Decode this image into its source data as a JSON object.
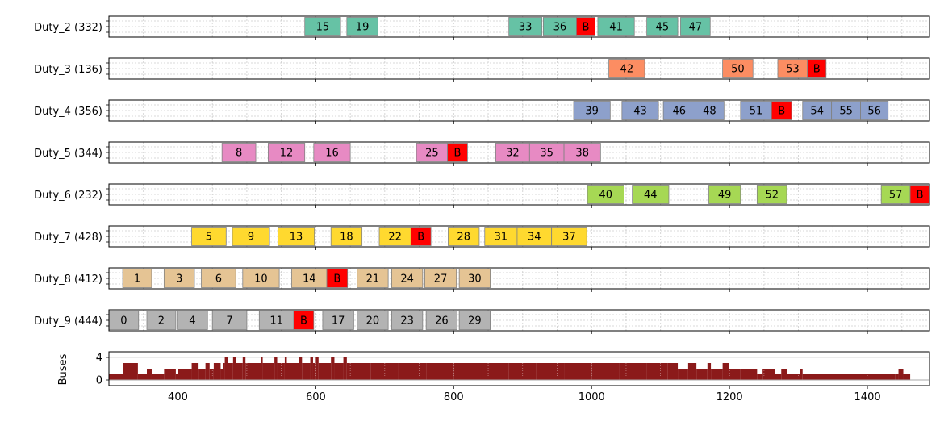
{
  "chart_data": {
    "type": "gantt",
    "x_range": [
      300,
      1490
    ],
    "x_ticks": [
      400,
      600,
      800,
      1000,
      1200,
      1400
    ],
    "grid": true,
    "break_label": "B",
    "colors": {
      "Duty_2": "#66c2a5",
      "Duty_3": "#fc8d62",
      "Duty_4": "#8da0cb",
      "Duty_5": "#e78ac3",
      "Duty_6": "#a6d854",
      "Duty_7": "#ffd92f",
      "Duty_8": "#e5c494",
      "Duty_9": "#b3b3b3",
      "break": "#ff0000",
      "buses": "#8b1a1a"
    },
    "rows": [
      {
        "label": "Duty_2 (332)",
        "key": "Duty_2",
        "tasks": [
          {
            "id": "15",
            "start": 584,
            "end": 636
          },
          {
            "id": "19",
            "start": 645,
            "end": 690
          },
          {
            "id": "33",
            "start": 880,
            "end": 928
          },
          {
            "id": "36",
            "start": 930,
            "end": 978
          },
          {
            "id": "B",
            "start": 978,
            "end": 1005,
            "brk": true
          },
          {
            "id": "41",
            "start": 1009,
            "end": 1062
          },
          {
            "id": "45",
            "start": 1080,
            "end": 1125
          },
          {
            "id": "47",
            "start": 1129,
            "end": 1172
          }
        ]
      },
      {
        "label": "Duty_3 (136)",
        "key": "Duty_3",
        "tasks": [
          {
            "id": "42",
            "start": 1025,
            "end": 1077
          },
          {
            "id": "50",
            "start": 1190,
            "end": 1234
          },
          {
            "id": "53",
            "start": 1270,
            "end": 1313
          },
          {
            "id": "B",
            "start": 1313,
            "end": 1340,
            "brk": true
          }
        ]
      },
      {
        "label": "Duty_4 (356)",
        "key": "Duty_4",
        "tasks": [
          {
            "id": "39",
            "start": 974,
            "end": 1027
          },
          {
            "id": "43",
            "start": 1044,
            "end": 1097
          },
          {
            "id": "46",
            "start": 1104,
            "end": 1150
          },
          {
            "id": "48",
            "start": 1150,
            "end": 1192
          },
          {
            "id": "51",
            "start": 1216,
            "end": 1261
          },
          {
            "id": "B",
            "start": 1261,
            "end": 1290,
            "brk": true
          },
          {
            "id": "54",
            "start": 1306,
            "end": 1348
          },
          {
            "id": "55",
            "start": 1348,
            "end": 1390
          },
          {
            "id": "56",
            "start": 1390,
            "end": 1430
          }
        ]
      },
      {
        "label": "Duty_5 (344)",
        "key": "Duty_5",
        "tasks": [
          {
            "id": "8",
            "start": 464,
            "end": 513
          },
          {
            "id": "12",
            "start": 531,
            "end": 584
          },
          {
            "id": "16",
            "start": 597,
            "end": 650
          },
          {
            "id": "25",
            "start": 746,
            "end": 791
          },
          {
            "id": "B",
            "start": 791,
            "end": 820,
            "brk": true
          },
          {
            "id": "32",
            "start": 861,
            "end": 910
          },
          {
            "id": "35",
            "start": 910,
            "end": 960
          },
          {
            "id": "38",
            "start": 960,
            "end": 1013
          }
        ]
      },
      {
        "label": "Duty_6 (232)",
        "key": "Duty_6",
        "tasks": [
          {
            "id": "40",
            "start": 994,
            "end": 1047
          },
          {
            "id": "44",
            "start": 1059,
            "end": 1112
          },
          {
            "id": "49",
            "start": 1170,
            "end": 1216
          },
          {
            "id": "52",
            "start": 1240,
            "end": 1283
          },
          {
            "id": "57",
            "start": 1420,
            "end": 1462
          },
          {
            "id": "B",
            "start": 1462,
            "end": 1490,
            "brk": true
          }
        ]
      },
      {
        "label": "Duty_7 (428)",
        "key": "Duty_7",
        "tasks": [
          {
            "id": "5",
            "start": 420,
            "end": 470
          },
          {
            "id": "9",
            "start": 479,
            "end": 533
          },
          {
            "id": "13",
            "start": 545,
            "end": 598
          },
          {
            "id": "18",
            "start": 622,
            "end": 667
          },
          {
            "id": "22",
            "start": 692,
            "end": 738
          },
          {
            "id": "B",
            "start": 738,
            "end": 767,
            "brk": true
          },
          {
            "id": "28",
            "start": 792,
            "end": 837
          },
          {
            "id": "31",
            "start": 845,
            "end": 892
          },
          {
            "id": "34",
            "start": 892,
            "end": 942
          },
          {
            "id": "37",
            "start": 942,
            "end": 993
          }
        ]
      },
      {
        "label": "Duty_8 (412)",
        "key": "Duty_8",
        "tasks": [
          {
            "id": "1",
            "start": 320,
            "end": 362
          },
          {
            "id": "3",
            "start": 380,
            "end": 424
          },
          {
            "id": "6",
            "start": 434,
            "end": 484
          },
          {
            "id": "10",
            "start": 494,
            "end": 547
          },
          {
            "id": "14",
            "start": 565,
            "end": 616
          },
          {
            "id": "B",
            "start": 616,
            "end": 646,
            "brk": true
          },
          {
            "id": "21",
            "start": 660,
            "end": 705
          },
          {
            "id": "24",
            "start": 710,
            "end": 755
          },
          {
            "id": "27",
            "start": 758,
            "end": 804
          },
          {
            "id": "30",
            "start": 808,
            "end": 853
          }
        ]
      },
      {
        "label": "Duty_9 (444)",
        "key": "Duty_9",
        "tasks": [
          {
            "id": "0",
            "start": 300,
            "end": 343
          },
          {
            "id": "2",
            "start": 355,
            "end": 397
          },
          {
            "id": "4",
            "start": 399,
            "end": 443
          },
          {
            "id": "7",
            "start": 450,
            "end": 500
          },
          {
            "id": "11",
            "start": 518,
            "end": 568
          },
          {
            "id": "B",
            "start": 568,
            "end": 597,
            "brk": true
          },
          {
            "id": "17",
            "start": 610,
            "end": 655
          },
          {
            "id": "20",
            "start": 660,
            "end": 705
          },
          {
            "id": "23",
            "start": 710,
            "end": 755
          },
          {
            "id": "26",
            "start": 760,
            "end": 805
          },
          {
            "id": "29",
            "start": 808,
            "end": 853
          }
        ]
      }
    ],
    "buses": {
      "ylabel": "Buses",
      "yticks": [
        0,
        4
      ],
      "ylim": [
        -1,
        5
      ],
      "steps": [
        [
          300,
          1
        ],
        [
          320,
          3
        ],
        [
          342,
          1
        ],
        [
          355,
          2
        ],
        [
          362,
          1
        ],
        [
          380,
          2
        ],
        [
          397,
          1
        ],
        [
          400,
          2
        ],
        [
          420,
          3
        ],
        [
          430,
          2
        ],
        [
          440,
          3
        ],
        [
          446,
          2
        ],
        [
          452,
          3
        ],
        [
          462,
          2
        ],
        [
          466,
          3
        ],
        [
          468,
          4
        ],
        [
          472,
          3
        ],
        [
          480,
          4
        ],
        [
          484,
          3
        ],
        [
          494,
          4
        ],
        [
          498,
          3
        ],
        [
          520,
          4
        ],
        [
          523,
          3
        ],
        [
          540,
          4
        ],
        [
          544,
          3
        ],
        [
          555,
          4
        ],
        [
          558,
          3
        ],
        [
          576,
          4
        ],
        [
          580,
          3
        ],
        [
          592,
          4
        ],
        [
          596,
          3
        ],
        [
          600,
          4
        ],
        [
          604,
          3
        ],
        [
          622,
          4
        ],
        [
          627,
          3
        ],
        [
          640,
          4
        ],
        [
          645,
          3
        ],
        [
          680,
          3
        ],
        [
          720,
          3
        ],
        [
          760,
          3
        ],
        [
          800,
          3
        ],
        [
          840,
          3
        ],
        [
          880,
          3
        ],
        [
          920,
          3
        ],
        [
          960,
          3
        ],
        [
          1000,
          3
        ],
        [
          1040,
          3
        ],
        [
          1080,
          3
        ],
        [
          1110,
          3
        ],
        [
          1125,
          2
        ],
        [
          1140,
          3
        ],
        [
          1152,
          2
        ],
        [
          1168,
          3
        ],
        [
          1173,
          2
        ],
        [
          1190,
          3
        ],
        [
          1199,
          2
        ],
        [
          1216,
          2
        ],
        [
          1240,
          1
        ],
        [
          1248,
          2
        ],
        [
          1266,
          1
        ],
        [
          1275,
          2
        ],
        [
          1283,
          1
        ],
        [
          1302,
          2
        ],
        [
          1306,
          1
        ],
        [
          1440,
          1
        ],
        [
          1445,
          2
        ],
        [
          1452,
          1
        ],
        [
          1462,
          0
        ]
      ]
    }
  }
}
